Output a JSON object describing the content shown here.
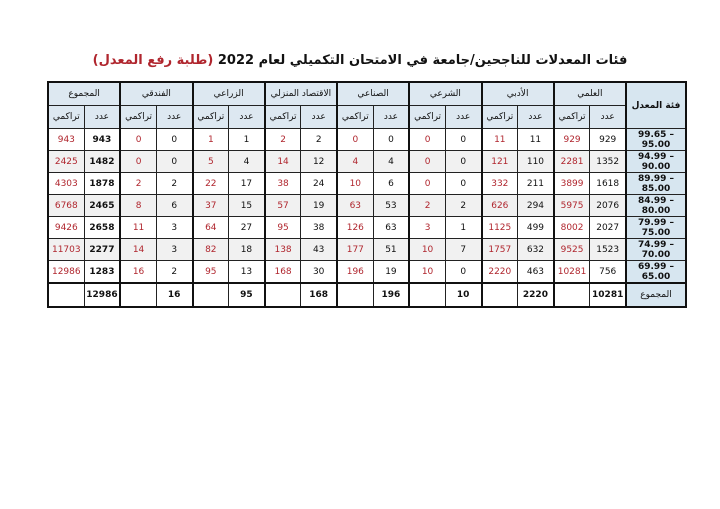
{
  "title": {
    "main": "فئات المعدلات للناجحين/جامعة في الامتحان التكميلي لعام 2022",
    "highlight": "(طلبة رفع المعدل)"
  },
  "header": {
    "rate_label": "فئة المعدل",
    "groups": [
      "العلمي",
      "الأدبي",
      "الشرعي",
      "الصناعي",
      "الاقتصاد المنزلي",
      "الزراعي",
      "الفندقي",
      "المجموع"
    ],
    "count_label": "عدد",
    "cumulative_label": "تراكمي"
  },
  "accent_color": "#b0262e",
  "rows": [
    {
      "range": "99.65 – 95.00",
      "values": [
        [
          929,
          929
        ],
        [
          11,
          11
        ],
        [
          0,
          0
        ],
        [
          0,
          0
        ],
        [
          2,
          2
        ],
        [
          1,
          1
        ],
        [
          0,
          0
        ],
        [
          943,
          943
        ]
      ]
    },
    {
      "range": "94.99 – 90.00",
      "values": [
        [
          1352,
          2281
        ],
        [
          110,
          121
        ],
        [
          0,
          0
        ],
        [
          4,
          4
        ],
        [
          12,
          14
        ],
        [
          4,
          5
        ],
        [
          0,
          0
        ],
        [
          1482,
          2425
        ]
      ]
    },
    {
      "range": "89.99 – 85.00",
      "values": [
        [
          1618,
          3899
        ],
        [
          211,
          332
        ],
        [
          0,
          0
        ],
        [
          6,
          10
        ],
        [
          24,
          38
        ],
        [
          17,
          22
        ],
        [
          2,
          2
        ],
        [
          1878,
          4303
        ]
      ]
    },
    {
      "range": "84.99 – 80.00",
      "values": [
        [
          2076,
          5975
        ],
        [
          294,
          626
        ],
        [
          2,
          2
        ],
        [
          53,
          63
        ],
        [
          19,
          57
        ],
        [
          15,
          37
        ],
        [
          6,
          8
        ],
        [
          2465,
          6768
        ]
      ]
    },
    {
      "range": "79.99 – 75.00",
      "values": [
        [
          2027,
          8002
        ],
        [
          499,
          1125
        ],
        [
          1,
          3
        ],
        [
          63,
          126
        ],
        [
          38,
          95
        ],
        [
          27,
          64
        ],
        [
          3,
          11
        ],
        [
          2658,
          9426
        ]
      ]
    },
    {
      "range": "74.99 – 70.00",
      "values": [
        [
          1523,
          9525
        ],
        [
          632,
          1757
        ],
        [
          7,
          10
        ],
        [
          51,
          177
        ],
        [
          43,
          138
        ],
        [
          18,
          82
        ],
        [
          3,
          14
        ],
        [
          2277,
          11703
        ]
      ]
    },
    {
      "range": "69.99 – 65.00",
      "values": [
        [
          756,
          10281
        ],
        [
          463,
          2220
        ],
        [
          0,
          10
        ],
        [
          19,
          196
        ],
        [
          30,
          168
        ],
        [
          13,
          95
        ],
        [
          2,
          16
        ],
        [
          1283,
          12986
        ]
      ]
    }
  ],
  "totals": {
    "label": "المجموع",
    "values": [
      10281,
      2220,
      10,
      196,
      168,
      95,
      16,
      12986
    ]
  }
}
